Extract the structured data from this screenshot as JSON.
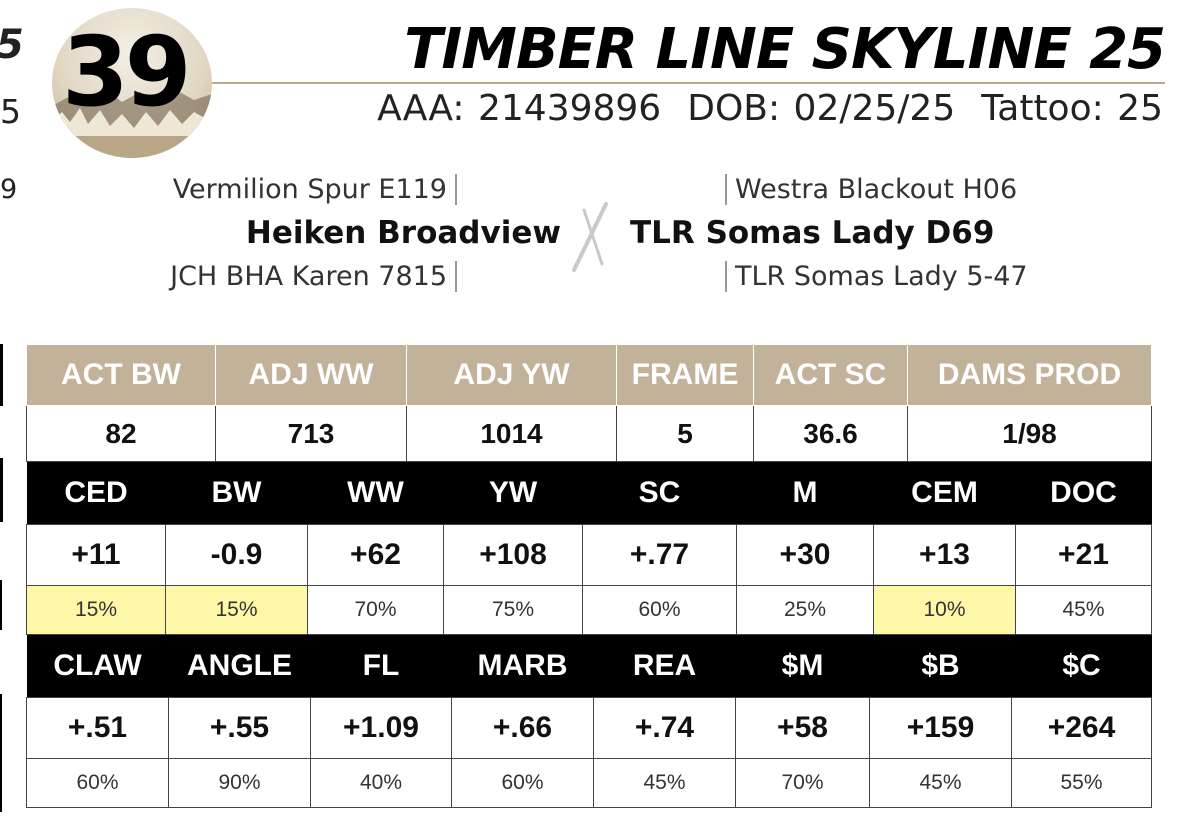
{
  "fragments": {
    "name_end": "5",
    "ids_end": "5",
    "pedigree_end": "9"
  },
  "header": {
    "lot_number": "39",
    "animal_name": "TIMBER LINE SKYLINE 25",
    "registration": "AAA: 21439896",
    "dob": "DOB: 02/25/25",
    "tattoo": "Tattoo: 25"
  },
  "pedigree": {
    "sire_sire": "Vermilion Spur E119",
    "sire": "Heiken Broadview",
    "sire_dam": "JCH BHA Karen 7815",
    "dam_sire": "Westra Blackout H06",
    "dam": "TLR Somas Lady D69",
    "dam_dam": "TLR Somas Lady 5-47"
  },
  "performance": {
    "headers": [
      "ACT BW",
      "ADJ WW",
      "ADJ YW",
      "FRAME",
      "ACT SC",
      "DAMS PROD"
    ],
    "values": [
      "82",
      "713",
      "1014",
      "5",
      "36.6",
      "1/98"
    ]
  },
  "epd_group_1": {
    "headers": [
      "CED",
      "BW",
      "WW",
      "YW",
      "SC",
      "M",
      "CEM",
      "DOC"
    ],
    "values": [
      "+11",
      "-0.9",
      "+62",
      "+108",
      "+.77",
      "+30",
      "+13",
      "+21"
    ],
    "percentiles": [
      "15%",
      "15%",
      "70%",
      "75%",
      "60%",
      "25%",
      "10%",
      "45%"
    ],
    "highlighted": [
      true,
      true,
      false,
      false,
      false,
      false,
      true,
      false
    ]
  },
  "epd_group_2": {
    "headers": [
      "CLAW",
      "ANGLE",
      "FL",
      "MARB",
      "REA",
      "$M",
      "$B",
      "$C"
    ],
    "values": [
      "+.51",
      "+.55",
      "+1.09",
      "+.66",
      "+.74",
      "+58",
      "+159",
      "+264"
    ],
    "percentiles": [
      "60%",
      "90%",
      "40%",
      "60%",
      "45%",
      "70%",
      "45%",
      "55%"
    ]
  },
  "colors": {
    "tan_header": "#c2b299",
    "black_header": "#000000",
    "highlight": "#fff7a8",
    "rule": "#b8aa8a"
  }
}
